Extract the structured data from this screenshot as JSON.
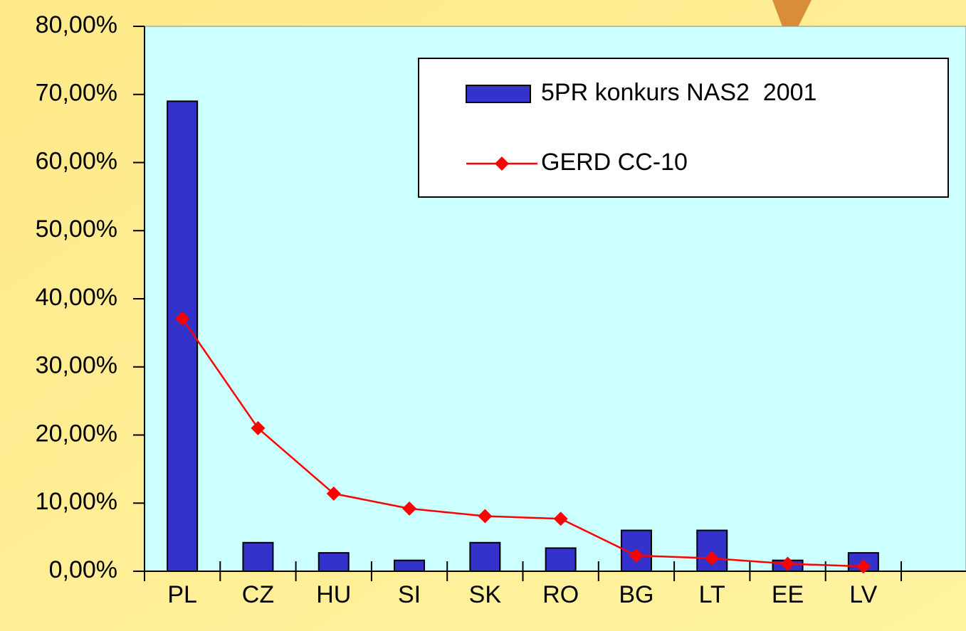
{
  "chart_data": {
    "type": "bar-line",
    "categories": [
      "PL",
      "CZ",
      "HU",
      "SI",
      "SK",
      "RO",
      "BG",
      "LT",
      "EE",
      "LV"
    ],
    "series": [
      {
        "name": "5PR konkurs NAS2  2001",
        "type": "bar",
        "color": "#3333cc",
        "values": [
          69.0,
          4.2,
          2.7,
          1.6,
          4.2,
          3.4,
          6.0,
          6.0,
          1.6,
          2.7
        ]
      },
      {
        "name": "GERD CC-10",
        "type": "line",
        "color": "#ff0000",
        "values": [
          37.1,
          21.0,
          11.4,
          9.2,
          8.1,
          7.7,
          2.3,
          1.9,
          1.1,
          0.7
        ]
      }
    ],
    "ylim": [
      0,
      80
    ],
    "yticks": [
      {
        "value": 0,
        "label": "0,00%"
      },
      {
        "value": 10,
        "label": "10,00%"
      },
      {
        "value": 20,
        "label": "20,00%"
      },
      {
        "value": 30,
        "label": "30,00%"
      },
      {
        "value": 40,
        "label": "40,00%"
      },
      {
        "value": 50,
        "label": "50,00%"
      },
      {
        "value": 60,
        "label": "60,00%"
      },
      {
        "value": 70,
        "label": "70,00%"
      },
      {
        "value": 80,
        "label": "80,00%"
      }
    ],
    "legend": "top-right",
    "plot_background": "#ccffff"
  }
}
